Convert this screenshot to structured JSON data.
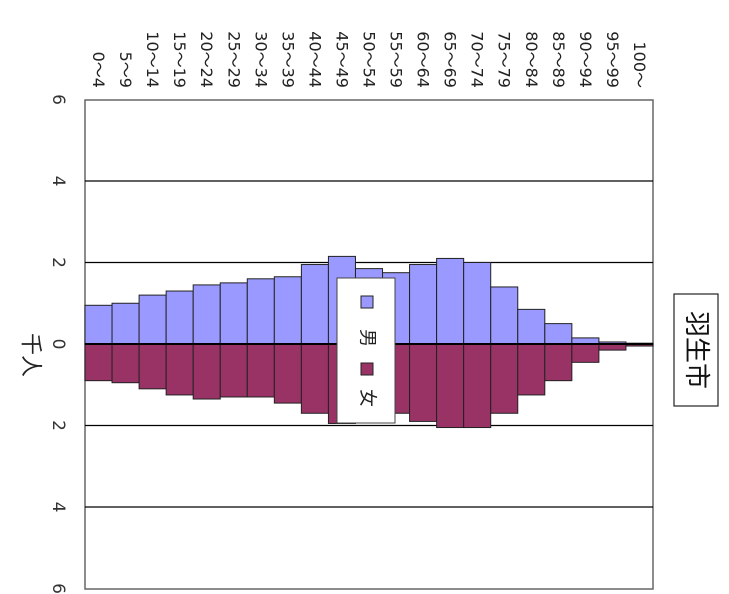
{
  "chart_data": {
    "type": "bar",
    "orientation": "population-pyramid (rotated 90° clockwise)",
    "title": "羽生市",
    "unit_label": "千人",
    "categories": [
      "0～4",
      "5～9",
      "10～14",
      "15～19",
      "20～24",
      "25～29",
      "30～34",
      "35～39",
      "40～44",
      "45～49",
      "50～54",
      "55～59",
      "60～64",
      "65～69",
      "70～74",
      "75～79",
      "80～84",
      "85～89",
      "90～94",
      "95～99",
      "100～"
    ],
    "series": [
      {
        "name": "男",
        "color": "#9999ff",
        "values": [
          0.95,
          1.0,
          1.2,
          1.3,
          1.45,
          1.5,
          1.6,
          1.65,
          1.95,
          2.15,
          1.85,
          1.75,
          1.95,
          2.1,
          2.0,
          1.4,
          0.85,
          0.5,
          0.15,
          0.05,
          0.02
        ]
      },
      {
        "name": "女",
        "color": "#993366",
        "values": [
          0.9,
          0.95,
          1.1,
          1.25,
          1.35,
          1.3,
          1.3,
          1.45,
          1.7,
          1.95,
          1.7,
          1.7,
          1.9,
          2.05,
          2.05,
          1.7,
          1.25,
          0.9,
          0.45,
          0.15,
          0.05
        ]
      }
    ],
    "ylim": [
      -6,
      6
    ],
    "tick_labels": [
      "6",
      "4",
      "2",
      "0",
      "2",
      "4",
      "6"
    ],
    "grid": true,
    "legend_position": "center-left"
  }
}
